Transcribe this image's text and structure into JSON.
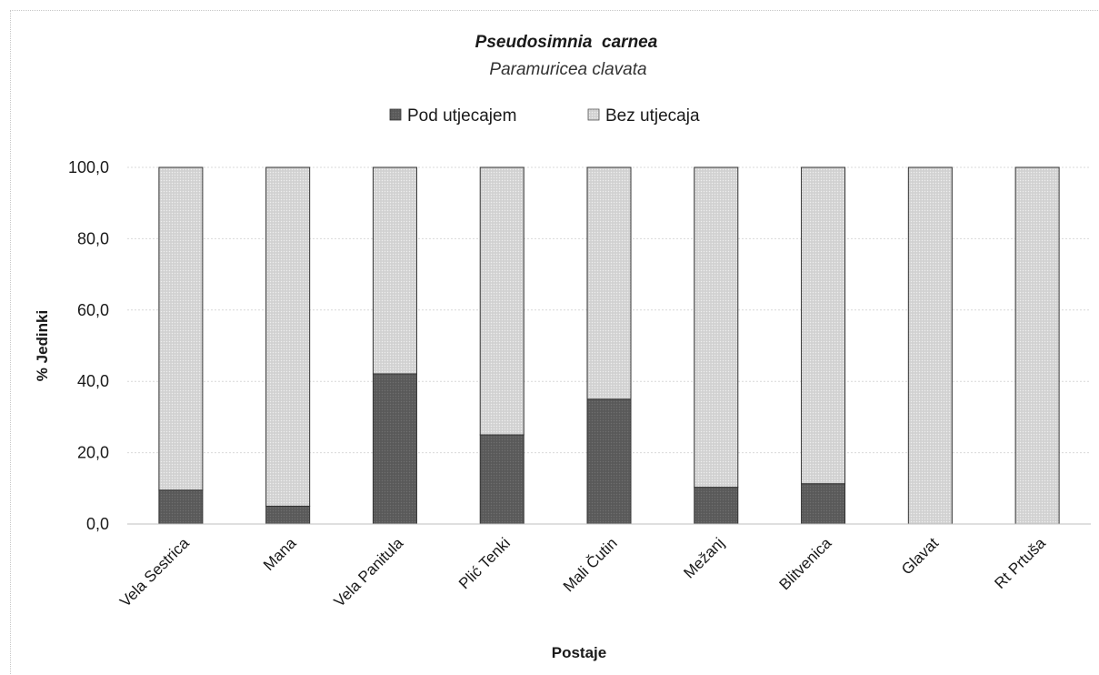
{
  "chart_data": {
    "type": "bar",
    "stacked": true,
    "title": "Pseudosimnia  carnea",
    "subtitle": "Paramuricea clavata",
    "xlabel": "Postaje",
    "ylabel": "% Jedinki",
    "ylim": [
      0,
      100
    ],
    "yticks": [
      "0,0",
      "20,0",
      "40,0",
      "60,0",
      "80,0",
      "100,0"
    ],
    "grid": true,
    "legend_position": "top",
    "categories": [
      "Vela Sestrica",
      "Mana",
      "Vela Panitula",
      "Plić Tenki",
      "Mali Čutin",
      "Mežanj",
      "Blitvenica",
      "Glavat",
      "Rt Prtuša"
    ],
    "series": [
      {
        "name": "Pod utjecajem",
        "color": "#5f5f5f",
        "values": [
          9.5,
          5.0,
          42.1,
          25.0,
          35.0,
          10.3,
          11.3,
          0.0,
          0.0
        ]
      },
      {
        "name": "Bez utjecaja",
        "color": "#d4d4d4",
        "values": [
          90.5,
          95.0,
          57.9,
          75.0,
          65.0,
          89.7,
          88.7,
          100.0,
          100.0
        ]
      }
    ]
  }
}
